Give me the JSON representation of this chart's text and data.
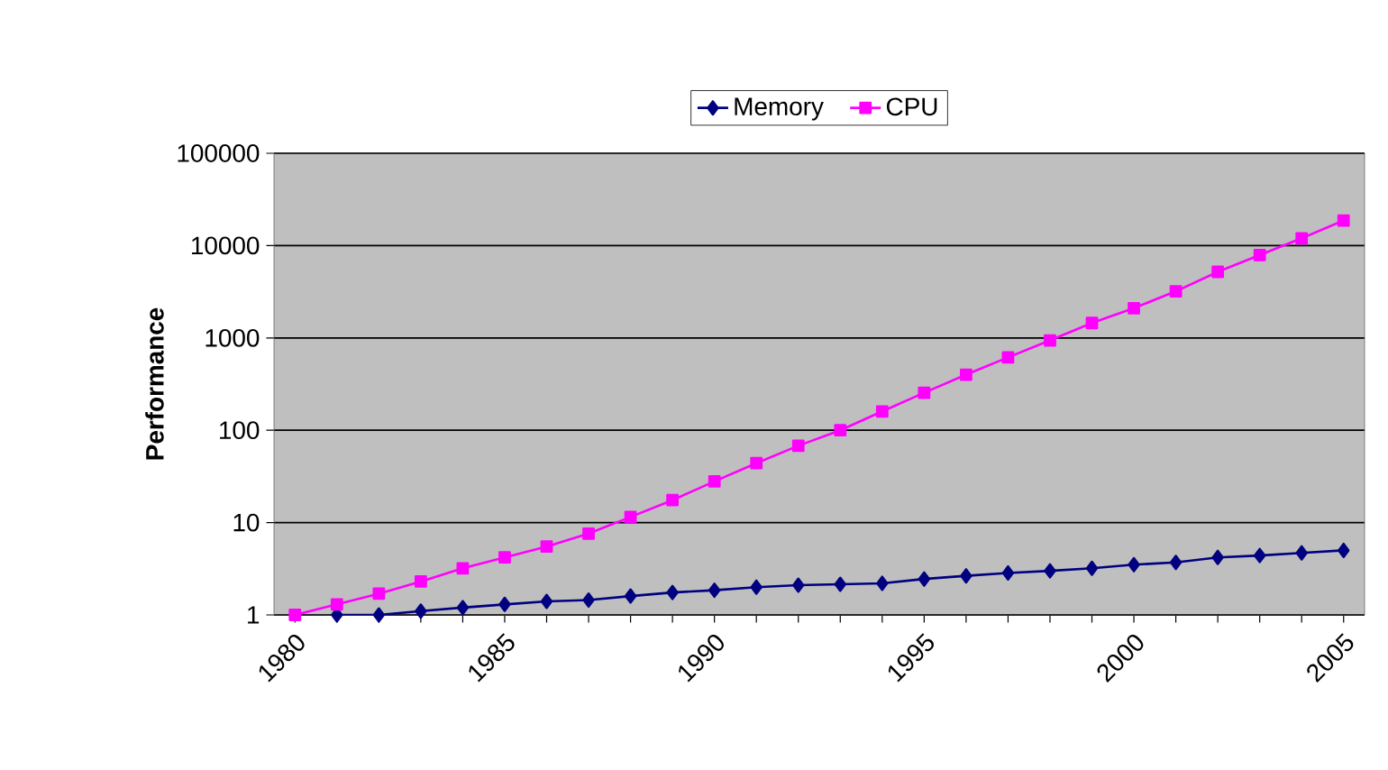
{
  "chart_data": {
    "type": "line",
    "ylabel": "Performance",
    "x": [
      1980,
      1981,
      1982,
      1983,
      1984,
      1985,
      1986,
      1987,
      1988,
      1989,
      1990,
      1991,
      1992,
      1993,
      1994,
      1995,
      1996,
      1997,
      1998,
      1999,
      2000,
      2001,
      2002,
      2003,
      2004,
      2005
    ],
    "series": [
      {
        "name": "Memory",
        "color": "#000080",
        "marker": "diamond",
        "values": [
          null,
          1,
          1,
          1.1,
          1.2,
          1.3,
          1.4,
          1.45,
          1.6,
          1.75,
          1.85,
          2,
          2.1,
          2.15,
          2.2,
          2.45,
          2.65,
          2.85,
          3,
          3.2,
          3.5,
          3.7,
          4.2,
          4.4,
          4.7,
          5
        ]
      },
      {
        "name": "CPU",
        "color": "#ff00ff",
        "marker": "square",
        "values": [
          1,
          1.3,
          1.7,
          2.3,
          3.2,
          4.2,
          5.5,
          7.6,
          11.5,
          17.5,
          28,
          44,
          68,
          100,
          160,
          255,
          400,
          615,
          940,
          1450,
          2100,
          3200,
          5200,
          7900,
          12000,
          18700
        ]
      }
    ],
    "xlim": [
      1979.5,
      2005.5
    ],
    "xticks": [
      1980,
      {
        "value": 1981,
        "label": null
      },
      {
        "value": 1982,
        "label": null
      },
      {
        "value": 1983,
        "label": null
      },
      {
        "value": 1984,
        "label": null
      },
      1985,
      {
        "value": 1986,
        "label": null
      },
      {
        "value": 1987,
        "label": null
      },
      {
        "value": 1988,
        "label": null
      },
      {
        "value": 1989,
        "label": null
      },
      1990,
      {
        "value": 1991,
        "label": null
      },
      {
        "value": 1992,
        "label": null
      },
      {
        "value": 1993,
        "label": null
      },
      {
        "value": 1994,
        "label": null
      },
      1995,
      {
        "value": 1996,
        "label": null
      },
      {
        "value": 1997,
        "label": null
      },
      {
        "value": 1998,
        "label": null
      },
      {
        "value": 1999,
        "label": null
      },
      2000,
      {
        "value": 2001,
        "label": null
      },
      {
        "value": 2002,
        "label": null
      },
      {
        "value": 2003,
        "label": null
      },
      {
        "value": 2004,
        "label": null
      },
      2005
    ],
    "ylim": [
      1,
      100000
    ],
    "yticks": [
      1,
      10,
      100,
      1000,
      10000,
      100000
    ],
    "log": "y",
    "grid": "y",
    "legend": "top",
    "line_style": "solid"
  }
}
